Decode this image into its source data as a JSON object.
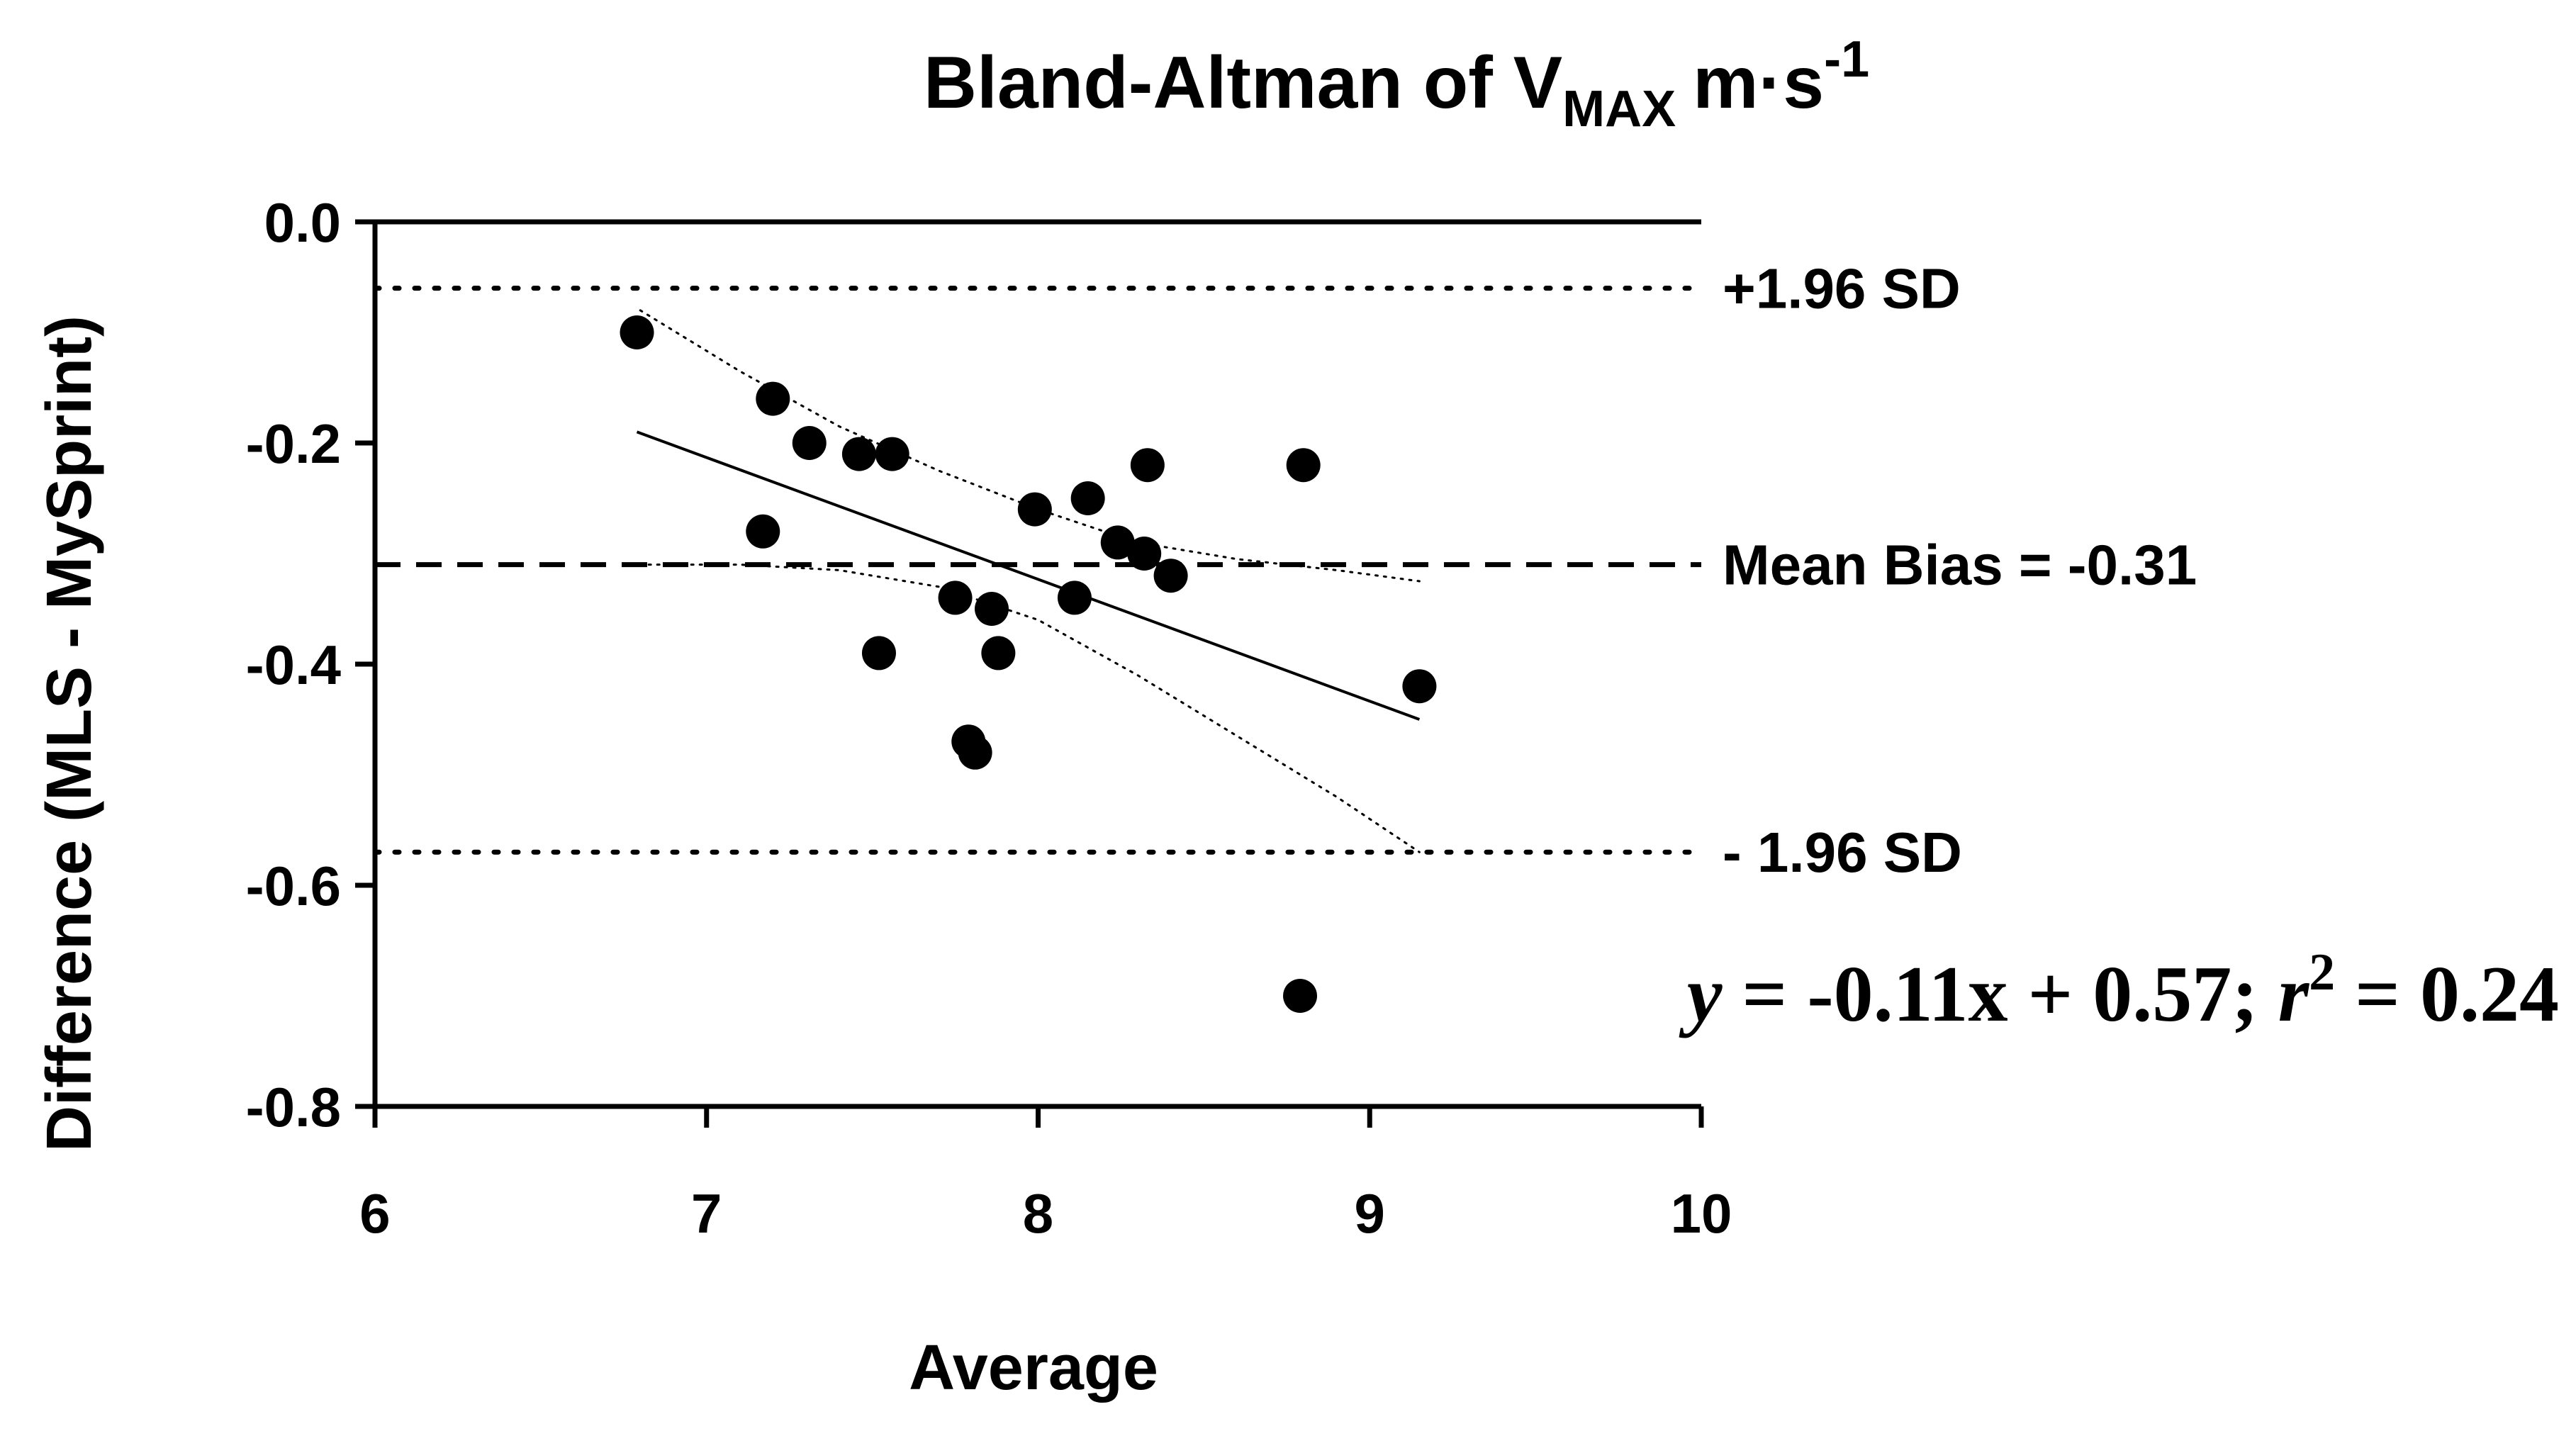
{
  "chart_data": {
    "type": "scatter",
    "title": {
      "main": "Bland-Altman of V",
      "subscript": "MAX",
      "unit": "m·s",
      "superscript": "-1"
    },
    "xlabel": "Average",
    "ylabel": "Difference (MLS - MySprint)",
    "xlim": [
      6,
      10
    ],
    "ylim": [
      -0.8,
      0.0
    ],
    "xticks": [
      6,
      7,
      8,
      9,
      10
    ],
    "xtick_labels": [
      "6",
      "7",
      "8",
      "9",
      "10"
    ],
    "yticks": [
      0.0,
      -0.2,
      -0.4,
      -0.6,
      -0.8
    ],
    "ytick_labels": [
      "0.0",
      "-0.2",
      "-0.4",
      "-0.6",
      "-0.8"
    ],
    "grid": false,
    "points": [
      {
        "x": 6.79,
        "y": -0.1
      },
      {
        "x": 7.2,
        "y": -0.16
      },
      {
        "x": 7.31,
        "y": -0.2
      },
      {
        "x": 7.46,
        "y": -0.21
      },
      {
        "x": 7.56,
        "y": -0.21
      },
      {
        "x": 7.17,
        "y": -0.28
      },
      {
        "x": 7.52,
        "y": -0.39
      },
      {
        "x": 7.75,
        "y": -0.34
      },
      {
        "x": 7.79,
        "y": -0.47
      },
      {
        "x": 7.81,
        "y": -0.48
      },
      {
        "x": 7.86,
        "y": -0.35
      },
      {
        "x": 7.88,
        "y": -0.39
      },
      {
        "x": 7.99,
        "y": -0.26
      },
      {
        "x": 8.11,
        "y": -0.34
      },
      {
        "x": 8.15,
        "y": -0.25
      },
      {
        "x": 8.24,
        "y": -0.29
      },
      {
        "x": 8.32,
        "y": -0.3
      },
      {
        "x": 8.33,
        "y": -0.22
      },
      {
        "x": 8.4,
        "y": -0.32
      },
      {
        "x": 8.8,
        "y": -0.22
      },
      {
        "x": 9.15,
        "y": -0.42
      },
      {
        "x": 8.79,
        "y": -0.7
      }
    ],
    "reference_lines": [
      {
        "name": "upper-limit",
        "y": -0.06,
        "label": "+1.96 SD",
        "style": "dotted"
      },
      {
        "name": "mean-bias",
        "y": -0.31,
        "label": "Mean Bias = -0.31",
        "style": "dashed"
      },
      {
        "name": "lower-limit",
        "y": -0.57,
        "label": "- 1.96 SD",
        "style": "dotted"
      }
    ],
    "regression": {
      "x_range": [
        6.79,
        9.15
      ],
      "y_start": -0.19,
      "y_end": -0.45,
      "equation": {
        "y_var": "y",
        "rhs": " = -0.11x + 0.57; ",
        "r_var": "r",
        "r_exp": "2",
        "r_value": " = 0.24"
      }
    },
    "confidence_band": {
      "upper": [
        {
          "x": 6.8,
          "y": -0.08
        },
        {
          "x": 7.1,
          "y": -0.135
        },
        {
          "x": 7.4,
          "y": -0.185
        },
        {
          "x": 7.7,
          "y": -0.225
        },
        {
          "x": 8.0,
          "y": -0.26
        },
        {
          "x": 8.3,
          "y": -0.29
        },
        {
          "x": 8.6,
          "y": -0.305
        },
        {
          "x": 8.9,
          "y": -0.315
        },
        {
          "x": 9.15,
          "y": -0.325
        }
      ],
      "lower": [
        {
          "x": 6.8,
          "y": -0.31
        },
        {
          "x": 7.1,
          "y": -0.31
        },
        {
          "x": 7.4,
          "y": -0.315
        },
        {
          "x": 7.7,
          "y": -0.33
        },
        {
          "x": 8.0,
          "y": -0.36
        },
        {
          "x": 8.3,
          "y": -0.41
        },
        {
          "x": 8.6,
          "y": -0.465
        },
        {
          "x": 8.9,
          "y": -0.52
        },
        {
          "x": 9.15,
          "y": -0.57
        }
      ]
    },
    "colors": {
      "ink": "#000000",
      "background": "#ffffff"
    }
  }
}
